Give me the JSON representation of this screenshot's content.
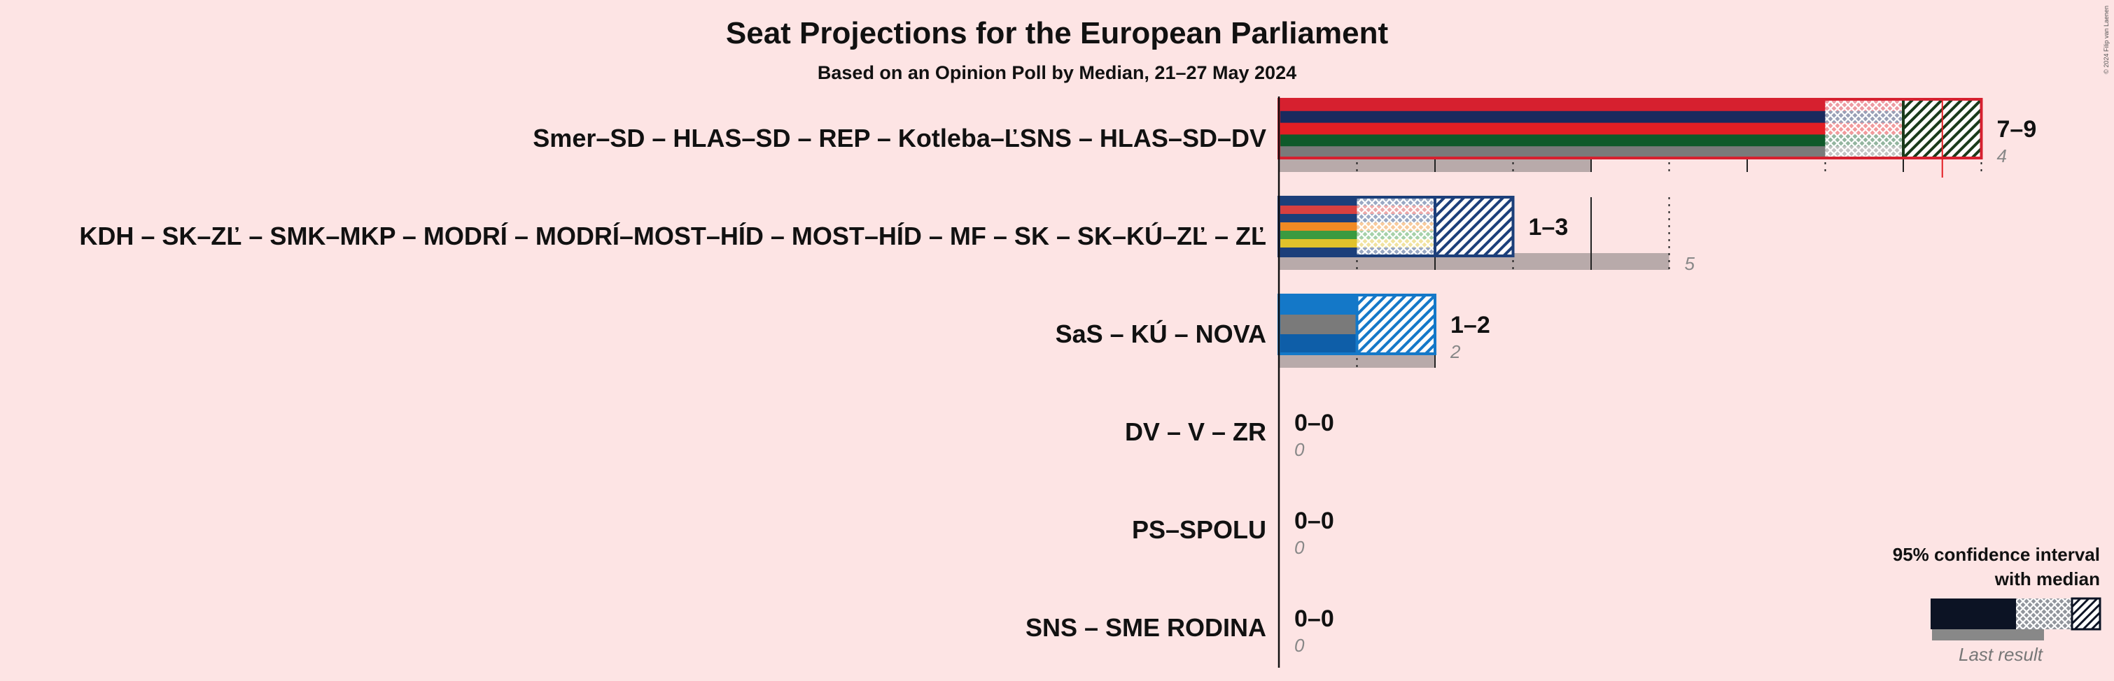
{
  "chart_data": {
    "type": "bar",
    "title": "Seat Projections for the European Parliament",
    "subtitle": "Based on an Opinion Poll by Median, 21–27 May 2024",
    "copyright": "© 2024 Filip van Laenen",
    "xlim": [
      0,
      9
    ],
    "categories": [
      "Smer–SD – HLAS–SD – REP – Kotleba–ĽSNS – HLAS–SD–DV",
      "KDH – SK–ZĽ – SMK–MKP – MODRÍ – MODRÍ–MOST–HÍD – MOST–HÍD – MF – SK – SK–KÚ–ZĽ – ZĽ",
      "SaS – KÚ – NOVA",
      "DV – V – ZR",
      "PS–SPOLU",
      "SNS – SME RODINA"
    ],
    "parties": [
      {
        "name": "Smer–SD – HLAS–SD – REP – Kotleba–ĽSNS – HLAS–SD–DV",
        "low": 7,
        "median": 8,
        "high": 9,
        "range": "7–9",
        "last": 4,
        "last_label": "4",
        "colors": [
          "#d6202f",
          "#1a2a5e",
          "#e31e24",
          "#0f5a2a",
          "#7a7a7a"
        ]
      },
      {
        "name": "KDH – SK–ZĽ – SMK–MKP – MODRÍ – MODRÍ–MOST–HÍD – MOST–HÍD – MF – SK – SK–KÚ–ZĽ – ZĽ",
        "low": 1,
        "median": 2,
        "high": 3,
        "range": "1–3",
        "last": 5,
        "last_label": "5",
        "colors": [
          "#1c3f7a",
          "#d84040",
          "#1c3f7a",
          "#f08a24",
          "#3a9a40",
          "#e0c22a",
          "#1c3f7a"
        ]
      },
      {
        "name": "SaS – KÚ – NOVA",
        "low": 1,
        "median": 1,
        "high": 2,
        "range": "1–2",
        "last": 2,
        "last_label": "2",
        "colors": [
          "#1478c8",
          "#7a7a7a",
          "#0e5ea8"
        ]
      },
      {
        "name": "DV – V – ZR",
        "low": 0,
        "median": 0,
        "high": 0,
        "range": "0–0",
        "last": 0,
        "last_label": "0",
        "colors": [
          "#555555"
        ]
      },
      {
        "name": "PS–SPOLU",
        "low": 0,
        "median": 0,
        "high": 0,
        "range": "0–0",
        "last": 0,
        "last_label": "0",
        "colors": [
          "#555555"
        ]
      },
      {
        "name": "SNS – SME RODINA",
        "low": 0,
        "median": 0,
        "high": 0,
        "range": "0–0",
        "last": 0,
        "last_label": "0",
        "colors": [
          "#555555"
        ]
      }
    ],
    "legend": {
      "line1": "95% confidence interval",
      "line2": "with median",
      "last_result": "Last result",
      "placement": "bottom-right"
    },
    "grid": true
  }
}
